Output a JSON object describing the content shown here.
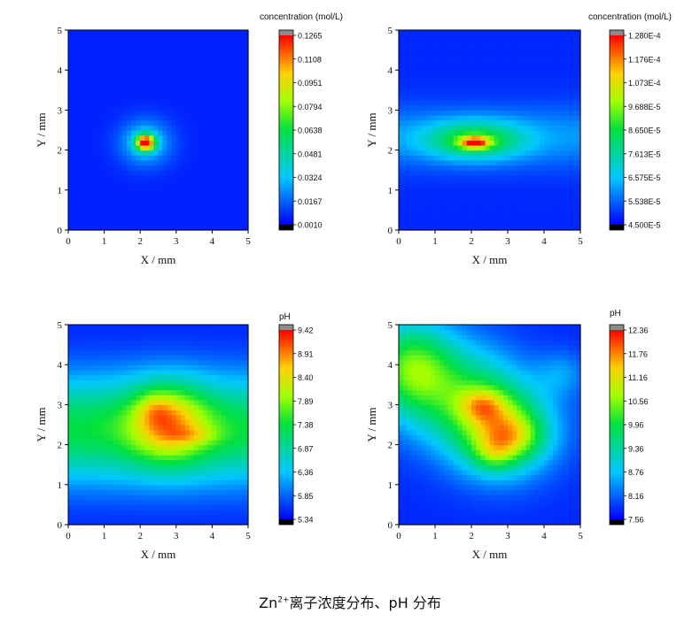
{
  "caption": {
    "prefix": "Zn",
    "sup": "2+",
    "rest": "离子浓度分布、pH 分布"
  },
  "chart_data": [
    {
      "type": "heatmap",
      "xlabel": "X / mm",
      "ylabel": "Y / mm",
      "xlim": [
        0,
        5
      ],
      "ylim": [
        0,
        5
      ],
      "xticks": [
        "0",
        "1",
        "2",
        "3",
        "4",
        "5"
      ],
      "yticks": [
        "0",
        "1",
        "2",
        "3",
        "4",
        "5"
      ],
      "colorbar_title": "concentration (mol/L)",
      "colorbar_ticks": [
        "0.1265",
        "0.1108",
        "0.0951",
        "0.0794",
        "0.0638",
        "0.0481",
        "0.0324",
        "0.0167",
        "0.0010"
      ],
      "vmin": 0.001,
      "vmax": 0.1265,
      "background": 0.006,
      "features": [
        {
          "cx": 2.15,
          "cy": 2.2,
          "sx": 0.5,
          "sy": 0.4,
          "amp": 0.03
        },
        {
          "cx": 2.15,
          "cy": 2.2,
          "sx": 0.18,
          "sy": 0.14,
          "amp": 0.11
        }
      ]
    },
    {
      "type": "heatmap",
      "xlabel": "X / mm",
      "ylabel": "Y / mm",
      "xlim": [
        0,
        5
      ],
      "ylim": [
        0,
        5
      ],
      "xticks": [
        "0",
        "1",
        "2",
        "3",
        "4",
        "5"
      ],
      "yticks": [
        "0",
        "1",
        "2",
        "3",
        "4",
        "5"
      ],
      "colorbar_title": "concentration (mol/L)",
      "colorbar_ticks": [
        "1.280E-4",
        "1.176E-4",
        "1.073E-4",
        "9.688E-5",
        "8.650E-5",
        "7.613E-5",
        "6.575E-5",
        "5.538E-5",
        "4.500E-5"
      ],
      "vmin": 4.5e-05,
      "vmax": 0.000128,
      "background": 4.9e-05,
      "features": [
        {
          "cx": 2.5,
          "cy": 2.35,
          "sx": 10,
          "sy": 0.55,
          "amp": 1.2e-05
        },
        {
          "cx": 2.1,
          "cy": 2.25,
          "sx": 0.9,
          "sy": 0.32,
          "amp": 3.2e-05
        },
        {
          "cx": 2.1,
          "cy": 2.2,
          "sx": 0.28,
          "sy": 0.1,
          "amp": 4.5e-05
        }
      ]
    },
    {
      "type": "heatmap",
      "xlabel": "X / mm",
      "ylabel": "Y / mm",
      "xlim": [
        0,
        5
      ],
      "ylim": [
        0,
        5
      ],
      "xticks": [
        "0",
        "1",
        "2",
        "3",
        "4",
        "5"
      ],
      "yticks": [
        "0",
        "1",
        "2",
        "3",
        "4",
        "5"
      ],
      "colorbar_title": "pH",
      "colorbar_ticks": [
        "9.42",
        "8.91",
        "8.40",
        "7.89",
        "7.38",
        "6.87",
        "6.36",
        "5.85",
        "5.34"
      ],
      "vmin": 5.34,
      "vmax": 9.42,
      "background": 5.5,
      "features": [
        {
          "cx": 2.5,
          "cy": 2.4,
          "sx": 10,
          "sy": 0.95,
          "amp": 1.9
        },
        {
          "cx": 2.8,
          "cy": 2.55,
          "sx": 0.75,
          "sy": 0.7,
          "amp": 1.6
        },
        {
          "cx": 2.4,
          "cy": 2.9,
          "sx": 0.35,
          "sy": 0.3,
          "amp": 0.5
        },
        {
          "cx": 3.5,
          "cy": 2.25,
          "sx": 0.5,
          "sy": 0.15,
          "amp": 0.4
        }
      ]
    },
    {
      "type": "heatmap",
      "xlabel": "X / mm",
      "ylabel": "Y / mm",
      "xlim": [
        0,
        5
      ],
      "ylim": [
        0,
        5
      ],
      "xticks": [
        "0",
        "1",
        "2",
        "3",
        "4",
        "5"
      ],
      "yticks": [
        "0",
        "1",
        "2",
        "3",
        "4",
        "5"
      ],
      "colorbar_title": "pH",
      "colorbar_ticks": [
        "12.36",
        "11.76",
        "11.16",
        "10.56",
        "9.96",
        "9.36",
        "8.76",
        "8.16",
        "7.56"
      ],
      "vmin": 7.56,
      "vmax": 12.36,
      "background": 7.8,
      "features": [
        {
          "cx": 0.3,
          "cy": 4.0,
          "sx": 0.8,
          "sy": 0.8,
          "amp": 2.0
        },
        {
          "cx": 1.5,
          "cy": 3.4,
          "sx": 1.2,
          "sy": 0.9,
          "amp": 1.6
        },
        {
          "cx": 2.8,
          "cy": 2.4,
          "sx": 1.0,
          "sy": 0.8,
          "amp": 2.5
        },
        {
          "cx": 2.3,
          "cy": 3.0,
          "sx": 0.45,
          "sy": 0.3,
          "amp": 1.2
        },
        {
          "cx": 3.1,
          "cy": 2.2,
          "sx": 0.6,
          "sy": 0.4,
          "amp": 1.2
        },
        {
          "cx": 2.6,
          "cy": 1.75,
          "sx": 0.4,
          "sy": 0.3,
          "amp": 0.8
        },
        {
          "cx": 4.5,
          "cy": 3.8,
          "sx": 0.5,
          "sy": 0.4,
          "amp": 0.6
        }
      ]
    }
  ]
}
